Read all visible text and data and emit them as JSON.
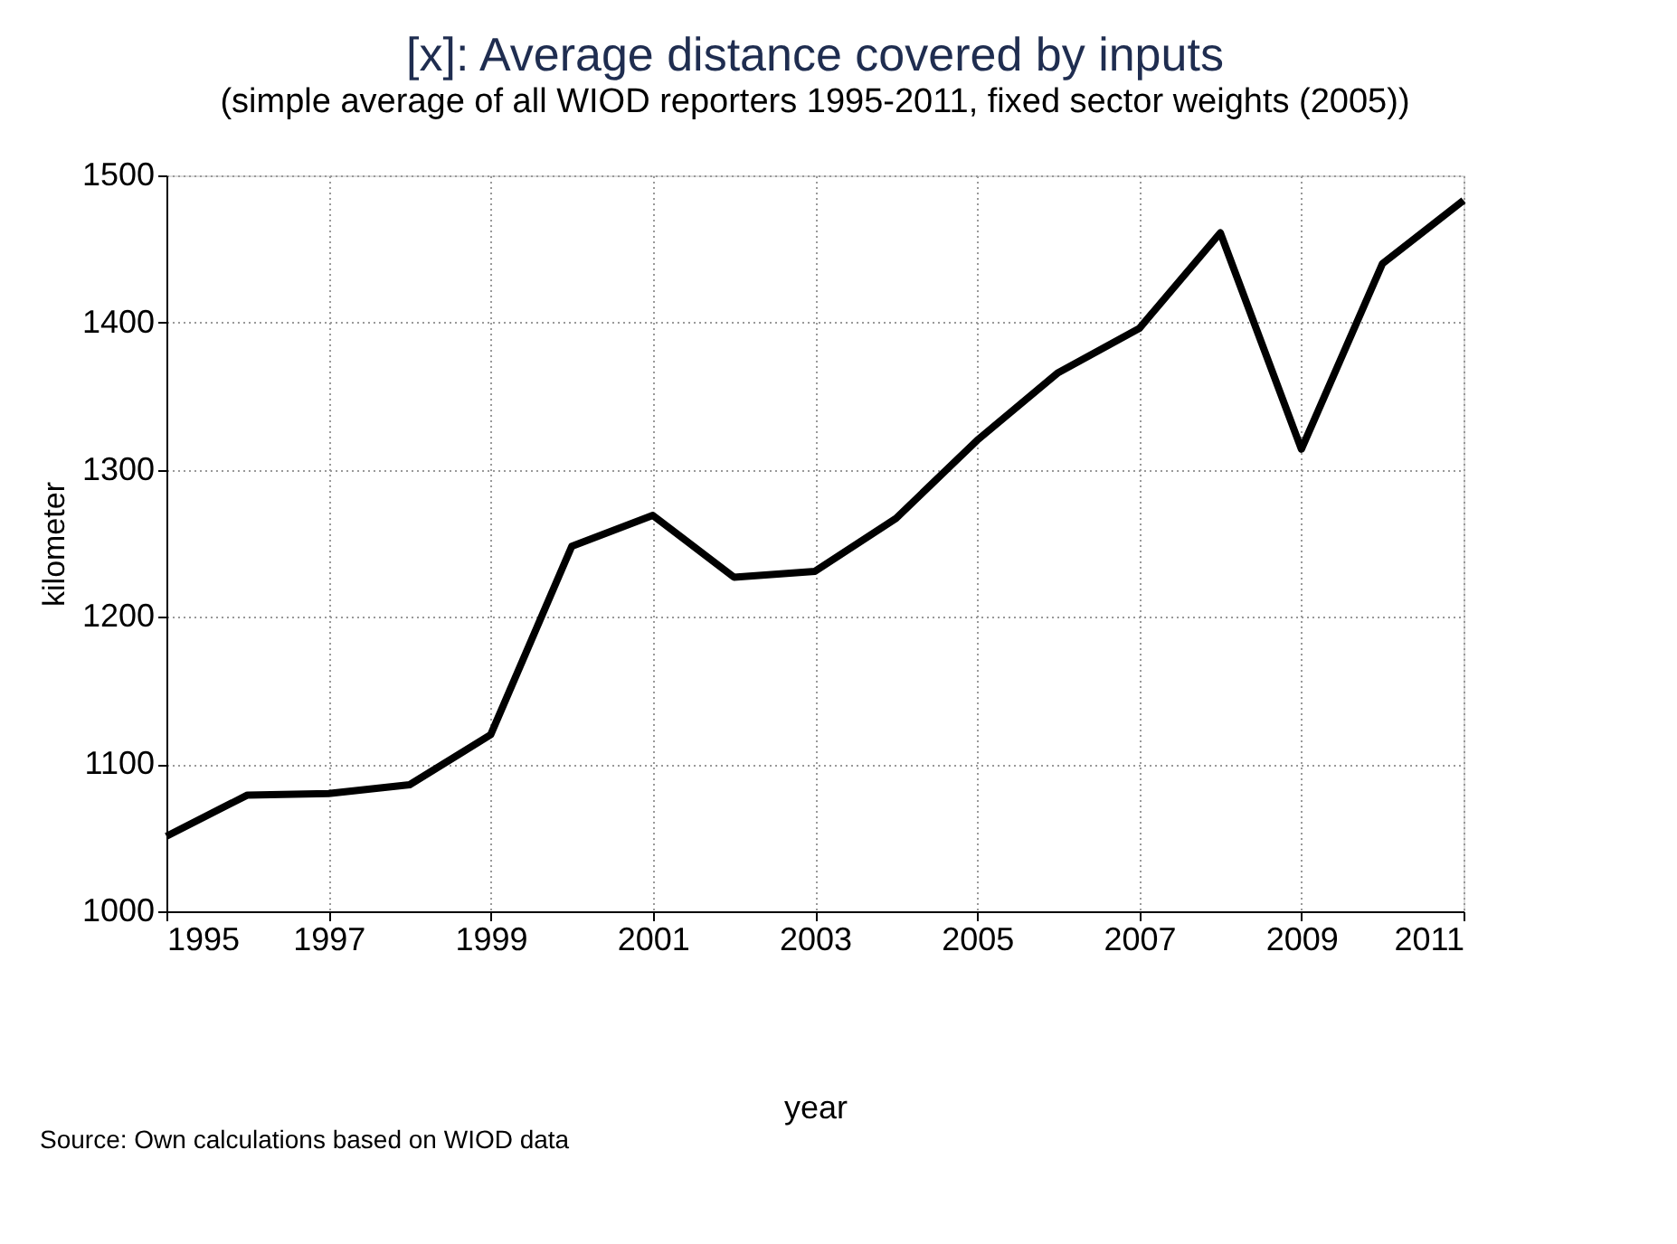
{
  "chart_data": {
    "type": "line",
    "title": "[x]: Average distance covered by inputs",
    "subtitle": "(simple average of all WIOD reporters 1995-2011, fixed sector weights (2005))",
    "xlabel": "year",
    "ylabel": "kilometer",
    "annotations": [
      "Source: Own calculations based on WIOD data"
    ],
    "x": [
      1995,
      1996,
      1997,
      1998,
      1999,
      2000,
      2001,
      2002,
      2003,
      2004,
      2005,
      2006,
      2007,
      2008,
      2009,
      2010,
      2011
    ],
    "series": [
      {
        "color": "#000000",
        "values": [
          1051,
          1079,
          1080,
          1086,
          1120,
          1248,
          1269,
          1227,
          1231,
          1267,
          1320,
          1366,
          1396,
          1461,
          1314,
          1440,
          1483
        ]
      }
    ],
    "xlim": [
      1995,
      2011
    ],
    "xticks": [
      1995,
      1997,
      1999,
      2001,
      2003,
      2005,
      2007,
      2009,
      2011
    ],
    "ylim": [
      1000,
      1500
    ],
    "yticks": [
      1000,
      1100,
      1200,
      1300,
      1400,
      1500
    ],
    "grid": true,
    "marker": "none",
    "line_style": "solid"
  }
}
